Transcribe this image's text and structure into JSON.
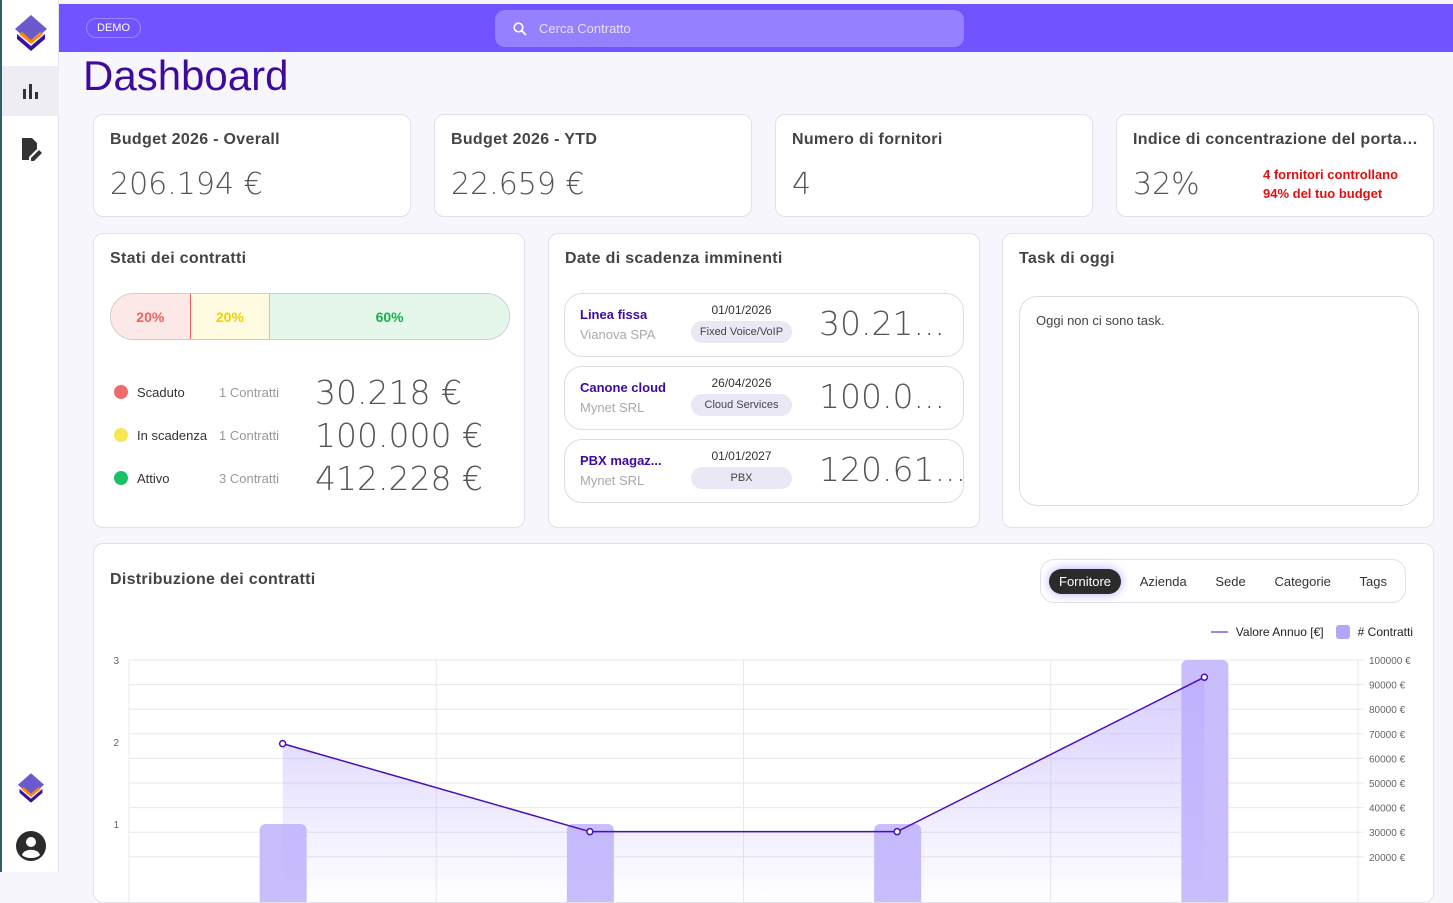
{
  "app": {
    "badge": "DEMO",
    "search_placeholder": "Cerca Contratto",
    "page_title": "Dashboard"
  },
  "sidebar": {
    "items": [
      {
        "icon": "logo-icon"
      },
      {
        "icon": "bar-chart-icon",
        "active": true
      },
      {
        "icon": "edit-document-icon"
      }
    ],
    "bottom": [
      {
        "icon": "logo-icon"
      },
      {
        "icon": "account-icon"
      }
    ]
  },
  "kpis": [
    {
      "title": "Budget 2026 - Overall",
      "value": "206.194 €"
    },
    {
      "title": "Budget 2026 - YTD",
      "value": "22.659 €"
    },
    {
      "title": "Numero di fornitori",
      "value": "4"
    },
    {
      "title": "Indice di concentrazione del portafoglio",
      "value": "32%",
      "note_line1": "4 fornitori controllano",
      "note_line2": "94% del tuo budget"
    }
  ],
  "stati": {
    "title": "Stati dei contratti",
    "segments": [
      {
        "label": "20%",
        "pct": 20,
        "bg": "#fde8e8",
        "color": "#f06060"
      },
      {
        "label": "20%",
        "pct": 20,
        "bg": "#fffbe0",
        "color": "#f0d000"
      },
      {
        "label": "60%",
        "pct": 60,
        "bg": "#e5f7ea",
        "color": "#18b050"
      }
    ],
    "rows": [
      {
        "label": "Scaduto",
        "count": "1 Contratti",
        "value": "30.218 €",
        "color": "#f06b6b"
      },
      {
        "label": "In scadenza",
        "count": "1 Contratti",
        "value": "100.000 €",
        "color": "#f5e850"
      },
      {
        "label": "Attivo",
        "count": "3 Contratti",
        "value": "412.228 €",
        "color": "#19c064"
      }
    ]
  },
  "scadenze": {
    "title": "Date di scadenza imminenti",
    "items": [
      {
        "name": "Linea fissa",
        "vendor": "Vianova SPA",
        "date": "01/01/2026",
        "tag": "Fixed Voice/VoIP",
        "amount": "30.21..."
      },
      {
        "name": "Canone cloud",
        "vendor": "Mynet SRL",
        "date": "26/04/2026",
        "tag": "Cloud Services",
        "amount": "100.0..."
      },
      {
        "name": "PBX magaz...",
        "vendor": "Mynet SRL",
        "date": "01/01/2027",
        "tag": "PBX",
        "amount": "120.61..."
      }
    ]
  },
  "tasks": {
    "title": "Task di oggi",
    "empty": "Oggi non ci sono task."
  },
  "distribuzione": {
    "title": "Distribuzione dei contratti",
    "tabs": [
      {
        "label": "Fornitore",
        "active": true
      },
      {
        "label": "Azienda"
      },
      {
        "label": "Sede"
      },
      {
        "label": "Categorie"
      },
      {
        "label": "Tags"
      }
    ]
  },
  "chart_data": {
    "type": "bar+line",
    "legend": [
      {
        "name": "Valore Annuo [€]",
        "type": "line",
        "color": "#9b85f5"
      },
      {
        "name": "# Contratti",
        "type": "bar",
        "color": "#b6a6fb"
      }
    ],
    "legend_placement": "top-right",
    "grid": true,
    "left_axis": {
      "range": [
        0,
        3
      ],
      "ticks": [
        "3",
        "2",
        "1"
      ]
    },
    "right_axis": {
      "range": [
        0,
        100000
      ],
      "ticks": [
        "100000 €",
        "90000 €",
        "80000 €",
        "70000 €",
        "60000 €",
        "50000 €",
        "40000 €",
        "30000 €",
        "20000 €"
      ]
    },
    "categories_count": 4,
    "series": [
      {
        "name": "# Contratti",
        "axis": "left",
        "values": [
          1,
          1,
          1,
          3
        ]
      },
      {
        "name": "Valore Annuo [€]",
        "axis": "right",
        "values": [
          66000,
          30218,
          30218,
          93000
        ]
      }
    ],
    "line_color": "#4a0fb5",
    "bar_color": "#c9bdfd"
  }
}
